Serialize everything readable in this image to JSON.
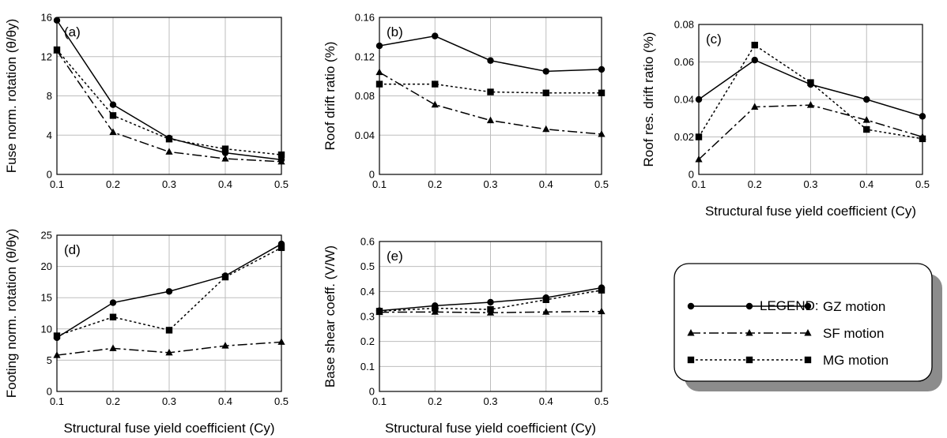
{
  "legend": {
    "title": "LEGEND:",
    "items": [
      {
        "label": "GZ motion",
        "marker": "circle",
        "dash": "solid"
      },
      {
        "label": "SF motion",
        "marker": "triangle",
        "dash": "dashdot"
      },
      {
        "label": "MG motion",
        "marker": "square",
        "dash": "dotted"
      }
    ]
  },
  "chart_data": [
    {
      "id": "a",
      "type": "line",
      "panel_label": "(a)",
      "ylabel": "Fuse norm. rotation (θ/θy)",
      "xlabel": "",
      "x": [
        0.1,
        0.2,
        0.3,
        0.4,
        0.5
      ],
      "xticks": [
        "0.1",
        "0.2",
        "0.3",
        "0.4",
        "0.5"
      ],
      "ylim": [
        0,
        16
      ],
      "yticks": [
        "0",
        "4",
        "8",
        "12",
        "16"
      ],
      "grid": true,
      "series": [
        {
          "name": "GZ motion",
          "values": [
            15.7,
            7.1,
            3.7,
            2.2,
            1.5
          ]
        },
        {
          "name": "SF motion",
          "values": [
            12.6,
            4.3,
            2.3,
            1.6,
            1.3
          ]
        },
        {
          "name": "MG motion",
          "values": [
            12.7,
            6.0,
            3.6,
            2.6,
            2.0
          ]
        }
      ]
    },
    {
      "id": "b",
      "type": "line",
      "panel_label": "(b)",
      "ylabel": "Roof drift ratio (%)",
      "xlabel": "",
      "x": [
        0.1,
        0.2,
        0.3,
        0.4,
        0.5
      ],
      "xticks": [
        "0.1",
        "0.2",
        "0.3",
        "0.4",
        "0.5"
      ],
      "ylim": [
        0,
        0.16
      ],
      "yticks": [
        "0",
        "0.04",
        "0.08",
        "0.12",
        "0.16"
      ],
      "grid": true,
      "series": [
        {
          "name": "GZ motion",
          "values": [
            0.131,
            0.141,
            0.116,
            0.105,
            0.107
          ]
        },
        {
          "name": "SF motion",
          "values": [
            0.104,
            0.071,
            0.055,
            0.046,
            0.041
          ]
        },
        {
          "name": "MG motion",
          "values": [
            0.092,
            0.092,
            0.084,
            0.083,
            0.083
          ]
        }
      ]
    },
    {
      "id": "c",
      "type": "line",
      "panel_label": "(c)",
      "ylabel": "Roof res. drift ratio (%)",
      "xlabel": "Structural fuse yield coefficient (Cy)",
      "x": [
        0.1,
        0.2,
        0.3,
        0.4,
        0.5
      ],
      "xticks": [
        "0.1",
        "0.2",
        "0.3",
        "0.4",
        "0.5"
      ],
      "ylim": [
        0,
        0.08
      ],
      "yticks": [
        "0",
        "0.02",
        "0.04",
        "0.06",
        "0.08"
      ],
      "grid": true,
      "series": [
        {
          "name": "GZ motion",
          "values": [
            0.04,
            0.061,
            0.048,
            0.04,
            0.031
          ]
        },
        {
          "name": "SF motion",
          "values": [
            0.008,
            0.036,
            0.037,
            0.029,
            0.02
          ]
        },
        {
          "name": "MG motion",
          "values": [
            0.02,
            0.069,
            0.049,
            0.024,
            0.019
          ]
        }
      ]
    },
    {
      "id": "d",
      "type": "line",
      "panel_label": "(d)",
      "ylabel": "Footing norm. rotation (θ/θy)",
      "xlabel": "Structural fuse yield coefficient (Cy)",
      "x": [
        0.1,
        0.2,
        0.3,
        0.4,
        0.5
      ],
      "xticks": [
        "0.1",
        "0.2",
        "0.3",
        "0.4",
        "0.5"
      ],
      "ylim": [
        0,
        25
      ],
      "yticks": [
        "0",
        "5",
        "10",
        "15",
        "20",
        "25"
      ],
      "grid": true,
      "series": [
        {
          "name": "GZ motion",
          "values": [
            8.6,
            14.2,
            16.0,
            18.5,
            23.6
          ]
        },
        {
          "name": "SF motion",
          "values": [
            5.8,
            6.9,
            6.2,
            7.3,
            7.9
          ]
        },
        {
          "name": "MG motion",
          "values": [
            8.9,
            11.9,
            9.8,
            18.3,
            23.0
          ]
        }
      ]
    },
    {
      "id": "e",
      "type": "line",
      "panel_label": "(e)",
      "ylabel": "Base shear coeff. (V/W)",
      "xlabel": "Structural fuse yield coefficient (Cy)",
      "x": [
        0.1,
        0.2,
        0.3,
        0.4,
        0.5
      ],
      "xticks": [
        "0.1",
        "0.2",
        "0.3",
        "0.4",
        "0.5"
      ],
      "ylim": [
        0,
        0.6
      ],
      "yticks": [
        "0",
        "0.1",
        "0.2",
        "0.3",
        "0.4",
        "0.5",
        "0.6"
      ],
      "grid": true,
      "series": [
        {
          "name": "GZ motion",
          "values": [
            0.323,
            0.343,
            0.357,
            0.375,
            0.415
          ]
        },
        {
          "name": "SF motion",
          "values": [
            0.317,
            0.318,
            0.315,
            0.318,
            0.32
          ]
        },
        {
          "name": "MG motion",
          "values": [
            0.321,
            0.333,
            0.328,
            0.367,
            0.405
          ]
        }
      ]
    }
  ]
}
